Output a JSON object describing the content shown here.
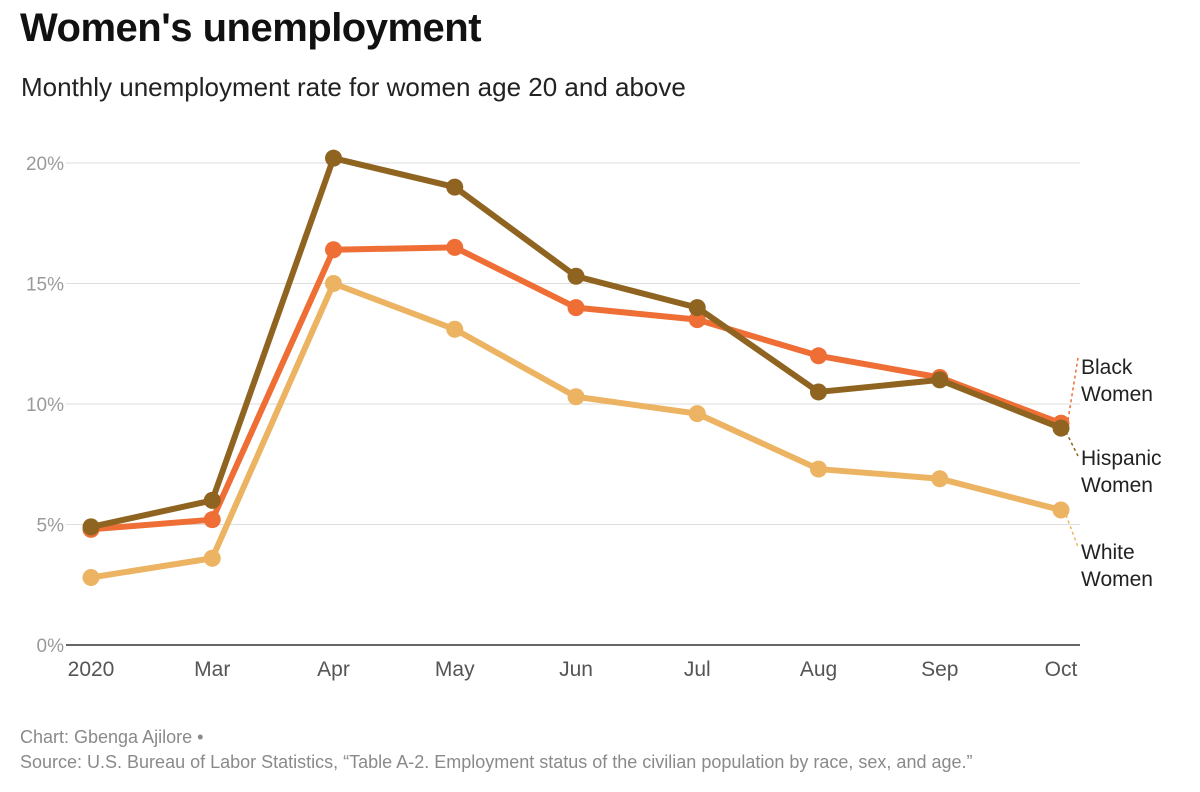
{
  "chart_data": {
    "type": "line",
    "title": "Women's unemployment",
    "subtitle": "Monthly unemployment rate for women age 20 and above",
    "categories": [
      "2020",
      "Mar",
      "Apr",
      "May",
      "Jun",
      "Jul",
      "Aug",
      "Sep",
      "Oct"
    ],
    "ylim": [
      0,
      20
    ],
    "yticks": [
      0,
      5,
      10,
      15,
      20
    ],
    "ytick_labels": [
      "0%",
      "5%",
      "10%",
      "15%",
      "20%"
    ],
    "grid": true,
    "legend": "direct labels at right end of lines",
    "series": [
      {
        "name": "Black Women",
        "label_lines": [
          "Black",
          "Women"
        ],
        "color": "#ee6e35",
        "values": [
          4.8,
          5.2,
          16.4,
          16.5,
          14.0,
          13.5,
          12.0,
          11.1,
          9.2
        ]
      },
      {
        "name": "Hispanic Women",
        "label_lines": [
          "Hispanic",
          "Women"
        ],
        "color": "#8f6420",
        "values": [
          4.9,
          6.0,
          20.2,
          19.0,
          15.3,
          14.0,
          10.5,
          11.0,
          9.0
        ]
      },
      {
        "name": "White Women",
        "label_lines": [
          "White",
          "Women"
        ],
        "color": "#ecb462",
        "values": [
          2.8,
          3.6,
          15.0,
          13.1,
          10.3,
          9.6,
          7.3,
          6.9,
          5.6
        ]
      }
    ]
  },
  "footer": {
    "credit": "Chart: Gbenga Ajilore •",
    "source": "Source: U.S. Bureau of Labor Statistics, “Table A-2. Employment status of the civilian population by race, sex, and age.”"
  }
}
